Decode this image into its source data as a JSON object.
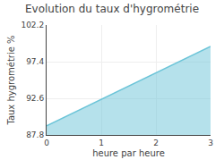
{
  "chart_data": {
    "type": "area",
    "title": "Evolution du taux d'hygrométrie",
    "x_label": "heure par heure",
    "y_label": "Taux hygrométrie %",
    "x": [
      0,
      3
    ],
    "values": [
      89.0,
      99.4
    ],
    "color": "#6bc4d8",
    "xlim": [
      0,
      3
    ],
    "xticks": [
      0,
      1,
      2,
      3
    ],
    "ylim": [
      87.8,
      102.2
    ],
    "yticks": [
      87.8,
      92.6,
      97.4,
      102.2
    ],
    "grid": true
  }
}
